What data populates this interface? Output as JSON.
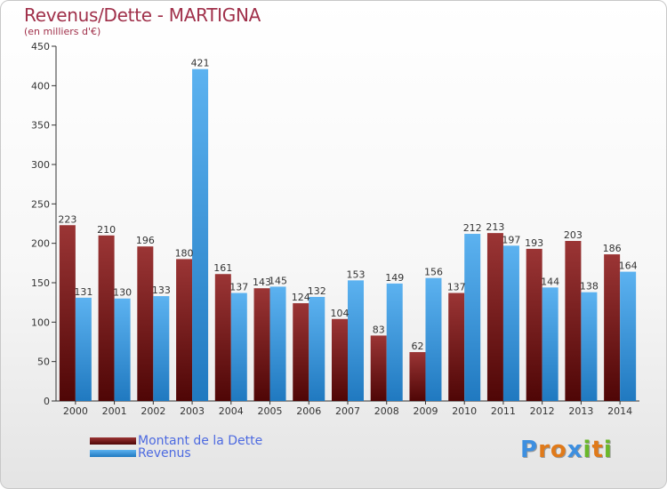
{
  "chart_data": {
    "type": "bar",
    "title": "Revenus/Dette - MARTIGNA",
    "subtitle": "(en milliers d'€)",
    "categories": [
      "2000",
      "2001",
      "2002",
      "2003",
      "2004",
      "2005",
      "2006",
      "2007",
      "2008",
      "2009",
      "2010",
      "2011",
      "2012",
      "2013",
      "2014"
    ],
    "series": [
      {
        "name": "Montant de la Dette",
        "color": "#7a1a1a",
        "values": [
          223,
          210,
          196,
          180,
          161,
          143,
          124,
          104,
          83,
          62,
          137,
          213,
          193,
          203,
          186
        ]
      },
      {
        "name": "Revenus",
        "color": "#3d9be0",
        "values": [
          131,
          130,
          133,
          421,
          137,
          145,
          132,
          153,
          149,
          156,
          212,
          197,
          144,
          138,
          164
        ]
      }
    ],
    "ylim": [
      0,
      450
    ],
    "yticks": [
      0,
      50,
      100,
      150,
      200,
      250,
      300,
      350,
      400,
      450
    ],
    "grid": false,
    "legend_position": "bottom-left"
  },
  "logo": {
    "text": "Proxiti",
    "letters": [
      "P",
      "r",
      "o",
      "x",
      "i",
      "t",
      "i"
    ],
    "colors": [
      "#3d8fe0",
      "#e07a1a",
      "#e07a1a",
      "#3d8fe0",
      "#6ab82a",
      "#e07a1a",
      "#6ab82a"
    ]
  }
}
